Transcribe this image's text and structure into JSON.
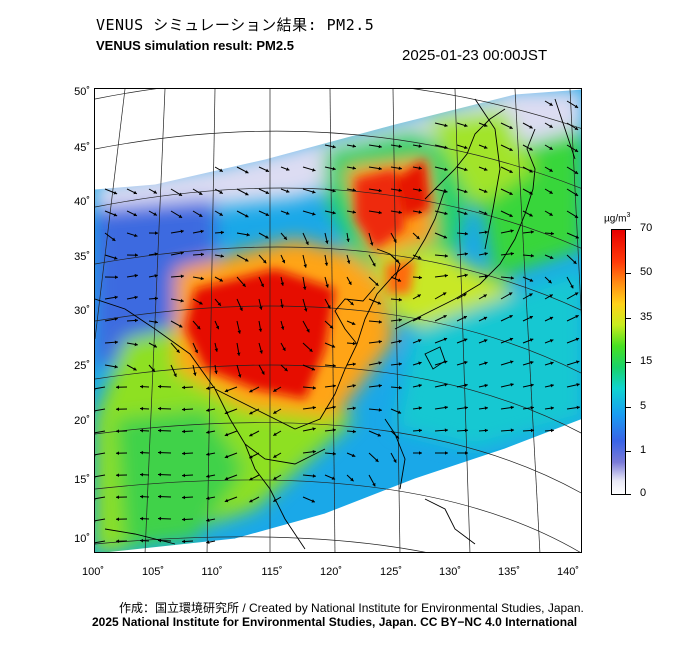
{
  "header": {
    "title_jp": "VENUS シミュレーション結果: PM2.5",
    "title_en": "VENUS simulation result: PM2.5",
    "timestamp": "2025-01-23 00:00JST"
  },
  "map": {
    "lat_labels": [
      "50˚",
      "45˚",
      "40˚",
      "35˚",
      "30˚",
      "25˚",
      "20˚",
      "15˚",
      "10˚"
    ],
    "lon_labels": [
      "100˚",
      "105˚",
      "110˚",
      "115˚",
      "120˚",
      "125˚",
      "130˚",
      "135˚",
      "140˚"
    ],
    "variable": "PM2.5",
    "layers": [
      "pm25-concentration",
      "wind-vectors",
      "coastlines",
      "graticule"
    ]
  },
  "colorbar": {
    "unit_prefix": "µg/m",
    "unit_power": "3",
    "tick_labels": [
      "70",
      "50",
      "35",
      "15",
      "5",
      "1",
      "0"
    ],
    "colors": {
      "min": "#ffffff",
      "low": "#3a63e6",
      "mid": "#19d26a",
      "high": "#ffd21a",
      "max": "#e60000"
    }
  },
  "footer": {
    "credit_line": "作成：国立環境研究所 / Created by National Institute for Environmental Studies, Japan.",
    "copyright_line": "2025 National Institute for Environmental Studies, Japan. CC BY−NC 4.0 International"
  }
}
